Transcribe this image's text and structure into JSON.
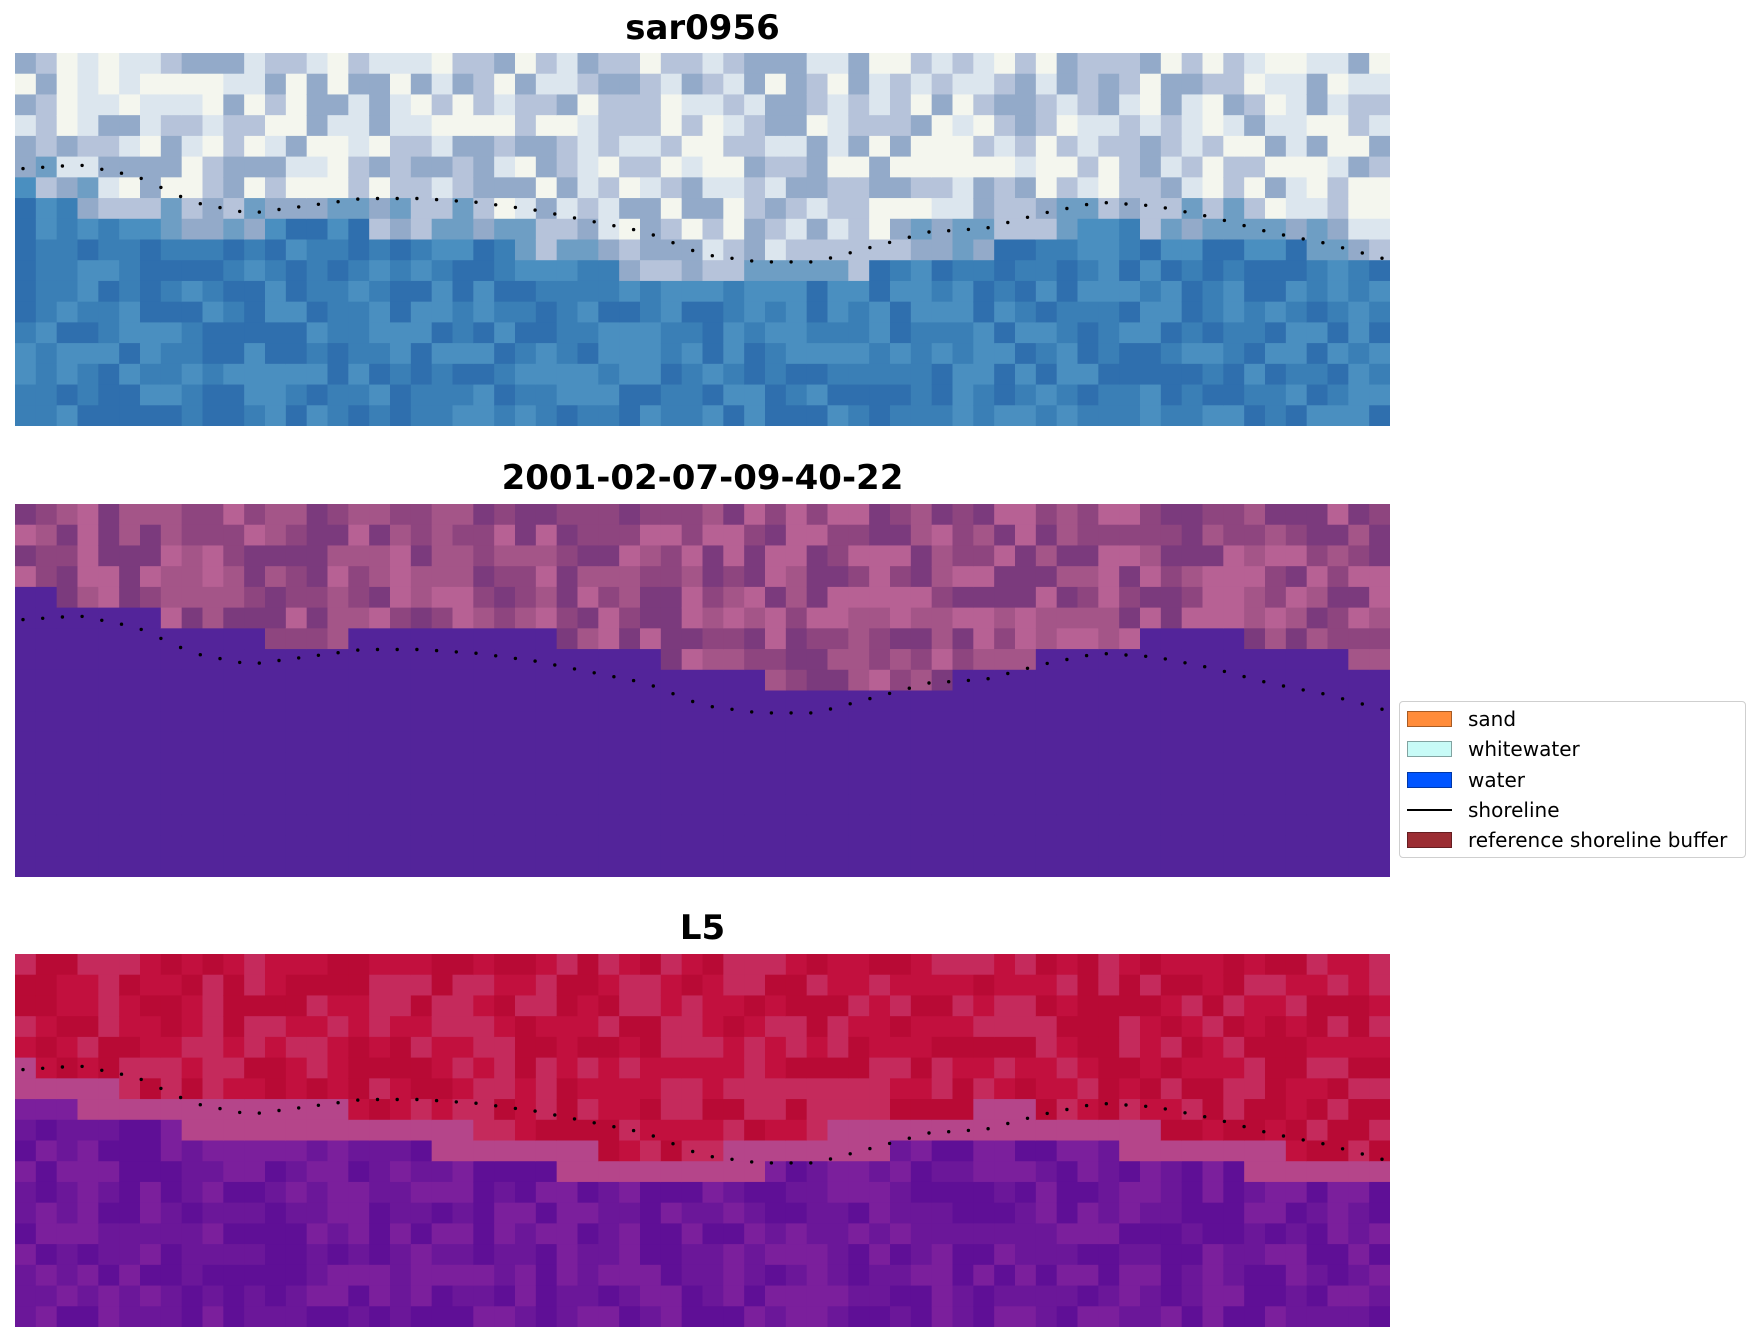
{
  "panels": [
    {
      "title": "sar0956",
      "palette": "rgb",
      "band_colors": [
        "#2f6fae",
        "#3a7fb6",
        "#4a8fc0",
        "#6e9ec4",
        "#93aac9",
        "#b6c3da",
        "#dce6ee",
        "#f4f6ee"
      ],
      "boundary": [
        0.28,
        0.4,
        0.42,
        0.4,
        0.42,
        0.46,
        0.52,
        0.56,
        0.56,
        0.51,
        0.46,
        0.4,
        0.42,
        0.46,
        0.52
      ]
    },
    {
      "title": "2001-02-07-09-40-22",
      "palette": "classified",
      "band_colors": [
        "#53249a",
        "#7b3a7d",
        "#8e457f",
        "#a45588",
        "#b76194"
      ],
      "boundary": [
        0.22,
        0.28,
        0.33,
        0.38,
        0.33,
        0.33,
        0.39,
        0.44,
        0.5,
        0.5,
        0.44,
        0.39,
        0.33,
        0.39,
        0.44
      ]
    },
    {
      "title": "L5",
      "palette": "ndwi",
      "band_colors": [
        "#5f0f96",
        "#6b1799",
        "#7b1f9c",
        "#b5458a",
        "#c52a5c",
        "#c2103e",
        "#b80a35"
      ],
      "boundary": [
        0.3,
        0.38,
        0.42,
        0.42,
        0.46,
        0.5,
        0.55,
        0.55,
        0.5,
        0.46,
        0.42,
        0.46,
        0.5,
        0.55,
        0.57
      ]
    }
  ],
  "shoreline": {
    "color": "#000000",
    "points": [
      0.31,
      0.3,
      0.33,
      0.4,
      0.43,
      0.41,
      0.39,
      0.39,
      0.4,
      0.42,
      0.45,
      0.48,
      0.54,
      0.56,
      0.56,
      0.52,
      0.48,
      0.47,
      0.43,
      0.4,
      0.41,
      0.44,
      0.48,
      0.51,
      0.55
    ]
  },
  "legend": {
    "items": [
      {
        "label": "sand",
        "kind": "patch",
        "color": "#ff8c3a"
      },
      {
        "label": "whitewater",
        "kind": "patch",
        "color": "#c8fbf7"
      },
      {
        "label": "water",
        "kind": "patch",
        "color": "#0055ff"
      },
      {
        "label": "shoreline",
        "kind": "line",
        "color": "#000000"
      },
      {
        "label": "reference shoreline buffer",
        "kind": "patch",
        "color": "#9b2d33"
      }
    ]
  }
}
